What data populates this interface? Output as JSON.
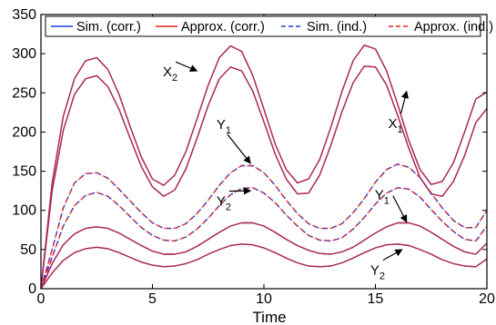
{
  "chart_data": {
    "type": "line",
    "xlabel": "Time",
    "ylabel": "",
    "xlim": [
      0,
      20
    ],
    "ylim": [
      0,
      350
    ],
    "xticks": [
      0,
      5,
      10,
      15,
      20
    ],
    "yticks": [
      0,
      50,
      100,
      150,
      200,
      250,
      300,
      350
    ],
    "grid": false,
    "legend": {
      "placement": "top",
      "entries": [
        {
          "label": "Sim. (corr.)",
          "color": "#1f3fe0",
          "style": "solid"
        },
        {
          "label": "Approx. (corr.)",
          "color": "#e8221e",
          "style": "solid"
        },
        {
          "label": "Sim. (ind.)",
          "color": "#1f3fe0",
          "style": "dashed"
        },
        {
          "label": "Approx. (ind.)",
          "color": "#e8221e",
          "style": "dashed"
        }
      ]
    },
    "colors": {
      "sim": "#1f3fe0",
      "approx": "#e8221e",
      "overlay": "#9b1f7e"
    },
    "series": [
      {
        "group": "corr",
        "style": "solid",
        "x": [
          0,
          0.5,
          1,
          1.5,
          2,
          2.5,
          3,
          3.5,
          4,
          4.5,
          5,
          5.5,
          6,
          6.5,
          7,
          7.5,
          8,
          8.5,
          9,
          9.5,
          10,
          10.5,
          11,
          11.5,
          12,
          12.5,
          13,
          13.5,
          14,
          14.5,
          15,
          15.5,
          16,
          16.5,
          17,
          17.5,
          18,
          18.5,
          19,
          19.5,
          20
        ],
        "values": [
          0,
          135,
          220,
          268,
          291,
          295,
          280,
          248,
          207,
          168,
          140,
          132,
          145,
          175,
          217,
          260,
          295,
          310,
          303,
          272,
          229,
          185,
          152,
          135,
          140,
          165,
          206,
          252,
          291,
          311,
          306,
          278,
          235,
          189,
          152,
          133,
          137,
          161,
          200,
          242,
          251
        ]
      },
      {
        "group": "corr",
        "style": "solid",
        "x": [
          0,
          0.5,
          1,
          1.5,
          2,
          2.5,
          3,
          3.5,
          4,
          4.5,
          5,
          5.5,
          6,
          6.5,
          7,
          7.5,
          8,
          8.5,
          9,
          9.5,
          10,
          10.5,
          11,
          11.5,
          12,
          12.5,
          13,
          13.5,
          14,
          14.5,
          15,
          15.5,
          16,
          16.5,
          17,
          17.5,
          18,
          18.5,
          19,
          19.5,
          20
        ],
        "values": [
          0,
          125,
          202,
          248,
          268,
          272,
          258,
          229,
          192,
          156,
          130,
          118,
          126,
          153,
          192,
          234,
          268,
          283,
          278,
          252,
          213,
          172,
          140,
          121,
          122,
          145,
          183,
          226,
          263,
          284,
          283,
          260,
          221,
          179,
          142,
          121,
          118,
          137,
          170,
          212,
          230
        ]
      },
      {
        "group": "ind",
        "style": "dashed",
        "x": [
          0,
          0.5,
          1,
          1.5,
          2,
          2.5,
          3,
          3.5,
          4,
          4.5,
          5,
          5.5,
          6,
          6.5,
          7,
          7.5,
          8,
          8.5,
          9,
          9.5,
          10,
          10.5,
          11,
          11.5,
          12,
          12.5,
          13,
          13.5,
          14,
          14.5,
          15,
          15.5,
          16,
          16.5,
          17,
          17.5,
          18,
          18.5,
          19,
          19.5,
          20
        ],
        "values": [
          0,
          50,
          103,
          135,
          147,
          148,
          141,
          127,
          112,
          97,
          84,
          77,
          77,
          83,
          96,
          113,
          132,
          148,
          157,
          157,
          148,
          132,
          113,
          96,
          83,
          77,
          77,
          83,
          97,
          115,
          136,
          152,
          159,
          155,
          142,
          122,
          103,
          87,
          78,
          78,
          100
        ]
      },
      {
        "group": "ind",
        "style": "dashed",
        "x": [
          0,
          0.5,
          1,
          1.5,
          2,
          2.5,
          3,
          3.5,
          4,
          4.5,
          5,
          5.5,
          6,
          6.5,
          7,
          7.5,
          8,
          8.5,
          9,
          9.5,
          10,
          10.5,
          11,
          11.5,
          12,
          12.5,
          13,
          13.5,
          14,
          14.5,
          15,
          15.5,
          16,
          16.5,
          17,
          17.5,
          18,
          18.5,
          19,
          19.5,
          20
        ],
        "values": [
          0,
          40,
          80,
          106,
          119,
          123,
          118,
          106,
          92,
          78,
          68,
          62,
          61,
          66,
          76,
          90,
          106,
          120,
          128,
          129,
          122,
          110,
          94,
          80,
          68,
          62,
          61,
          65,
          76,
          91,
          108,
          122,
          129,
          127,
          117,
          101,
          86,
          73,
          63,
          61,
          80
        ]
      },
      {
        "group": "corr",
        "style": "solid",
        "x": [
          0,
          0.5,
          1,
          1.5,
          2,
          2.5,
          3,
          3.5,
          4,
          4.5,
          5,
          5.5,
          6,
          6.5,
          7,
          7.5,
          8,
          8.5,
          9,
          9.5,
          10,
          10.5,
          11,
          11.5,
          12,
          12.5,
          13,
          13.5,
          14,
          14.5,
          15,
          15.5,
          16,
          16.5,
          17,
          17.5,
          18,
          18.5,
          19,
          19.5,
          20
        ],
        "values": [
          0,
          32,
          56,
          70,
          77,
          79,
          77,
          71,
          63,
          55,
          48,
          44,
          44,
          47,
          54,
          63,
          72,
          80,
          84,
          84,
          80,
          72,
          63,
          55,
          49,
          45,
          44,
          47,
          53,
          62,
          71,
          79,
          84,
          84,
          80,
          72,
          63,
          54,
          47,
          44,
          58
        ]
      },
      {
        "group": "corr",
        "style": "solid",
        "x": [
          0,
          0.5,
          1,
          1.5,
          2,
          2.5,
          3,
          3.5,
          4,
          4.5,
          5,
          5.5,
          6,
          6.5,
          7,
          7.5,
          8,
          8.5,
          9,
          9.5,
          10,
          10.5,
          11,
          11.5,
          12,
          12.5,
          13,
          13.5,
          14,
          14.5,
          15,
          15.5,
          16,
          16.5,
          17,
          17.5,
          18,
          18.5,
          19,
          19.5,
          20
        ],
        "values": [
          0,
          20,
          36,
          46,
          51,
          53,
          51,
          46,
          40,
          34,
          30,
          28,
          29,
          32,
          37,
          44,
          50,
          55,
          57,
          56,
          52,
          46,
          39,
          33,
          29,
          28,
          29,
          33,
          39,
          46,
          52,
          56,
          57,
          55,
          50,
          44,
          37,
          32,
          29,
          28,
          38
        ]
      }
    ],
    "annotations": [
      {
        "label": "X",
        "sub": "2",
        "x": 7.0,
        "y": 278,
        "tx": 5.8,
        "ty": 271
      },
      {
        "label": "X",
        "sub": "1",
        "x": 16.4,
        "y": 252,
        "tx": 15.9,
        "ty": 205
      },
      {
        "label": "Y",
        "sub": "1",
        "x": 9.4,
        "y": 160,
        "tx": 8.2,
        "ty": 204
      },
      {
        "label": "Y",
        "sub": "2",
        "x": 9.4,
        "y": 125,
        "tx": 8.2,
        "ty": 106
      },
      {
        "label": "Y",
        "sub": "1",
        "x": 16.4,
        "y": 85,
        "tx": 15.3,
        "ty": 114
      },
      {
        "label": "Y",
        "sub": "2",
        "x": 16.2,
        "y": 50,
        "tx": 15.1,
        "ty": 18
      }
    ]
  }
}
